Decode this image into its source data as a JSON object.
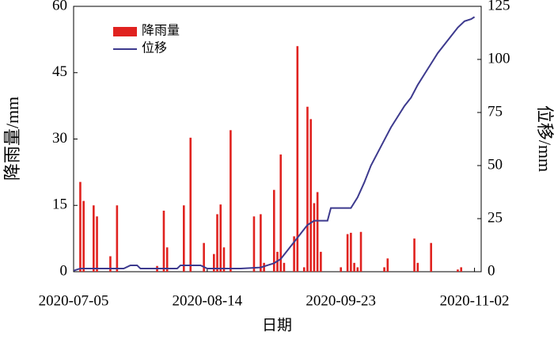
{
  "chart_data": {
    "type": "bar-line",
    "xlabel": "日期",
    "ylabel": "降雨量/mm",
    "y2label": "位移/mm",
    "xlim": [
      "2020-07-05",
      "2020-11-04"
    ],
    "xticks": [
      "2020-07-05",
      "2020-08-14",
      "2020-09-23",
      "2020-11-02"
    ],
    "ylim": [
      0,
      60
    ],
    "yticks": [
      0,
      15,
      30,
      45,
      60
    ],
    "y2lim": [
      0,
      125
    ],
    "y2ticks": [
      0,
      25,
      50,
      75,
      100,
      125
    ],
    "legend": "upper-left",
    "series": [
      {
        "name": "降雨量",
        "type": "bar",
        "color": "#e0221f",
        "x": [
          "2020-07-07",
          "2020-07-08",
          "2020-07-11",
          "2020-07-12",
          "2020-07-16",
          "2020-07-18",
          "2020-07-30",
          "2020-08-01",
          "2020-08-02",
          "2020-08-07",
          "2020-08-09",
          "2020-08-13",
          "2020-08-16",
          "2020-08-17",
          "2020-08-18",
          "2020-08-19",
          "2020-08-21",
          "2020-08-28",
          "2020-08-30",
          "2020-08-31",
          "2020-09-03",
          "2020-09-04",
          "2020-09-05",
          "2020-09-06",
          "2020-09-09",
          "2020-09-10",
          "2020-09-12",
          "2020-09-13",
          "2020-09-14",
          "2020-09-15",
          "2020-09-16",
          "2020-09-17",
          "2020-09-23",
          "2020-09-25",
          "2020-09-26",
          "2020-09-27",
          "2020-09-28",
          "2020-09-29",
          "2020-10-06",
          "2020-10-07",
          "2020-10-15",
          "2020-10-16",
          "2020-10-20",
          "2020-10-28",
          "2020-10-29"
        ],
        "values": [
          20.3,
          16,
          15,
          12.5,
          3.5,
          15,
          1.3,
          13.8,
          5.5,
          15,
          30.3,
          6.5,
          4,
          13,
          15.2,
          5.5,
          32,
          12.5,
          13,
          2,
          18.5,
          4.5,
          26.5,
          2,
          8,
          51,
          1,
          37.3,
          34.5,
          15.5,
          18,
          4.5,
          1,
          8.5,
          8.8,
          2,
          1,
          9,
          1,
          3,
          7.5,
          2,
          6.5,
          0.5,
          1
        ]
      },
      {
        "name": "位移",
        "type": "line",
        "axis": "y2",
        "color": "#3d3a8e",
        "x": [
          "2020-07-05",
          "2020-07-07",
          "2020-07-20",
          "2020-07-22",
          "2020-07-24",
          "2020-07-25",
          "2020-07-30",
          "2020-08-05",
          "2020-08-06",
          "2020-08-12",
          "2020-08-14",
          "2020-08-24",
          "2020-08-30",
          "2020-09-01",
          "2020-09-03",
          "2020-09-05",
          "2020-09-07",
          "2020-09-09",
          "2020-09-11",
          "2020-09-13",
          "2020-09-15",
          "2020-09-19",
          "2020-09-20",
          "2020-09-26",
          "2020-09-28",
          "2020-09-30",
          "2020-10-02",
          "2020-10-04",
          "2020-10-06",
          "2020-10-08",
          "2020-10-10",
          "2020-10-12",
          "2020-10-14",
          "2020-10-16",
          "2020-10-18",
          "2020-10-20",
          "2020-10-22",
          "2020-10-24",
          "2020-10-26",
          "2020-10-28",
          "2020-10-30",
          "2020-11-01",
          "2020-11-02"
        ],
        "values": [
          0.5,
          1.5,
          1.5,
          3,
          3,
          1.5,
          1.5,
          1.5,
          3,
          3,
          1.5,
          1.5,
          2,
          3,
          4,
          6,
          10,
          14,
          18,
          22,
          24,
          24,
          30,
          30,
          35,
          42,
          50,
          56,
          62,
          68,
          73,
          78,
          82,
          88,
          93,
          98,
          103,
          107,
          111,
          115,
          118,
          119,
          120
        ]
      }
    ]
  }
}
